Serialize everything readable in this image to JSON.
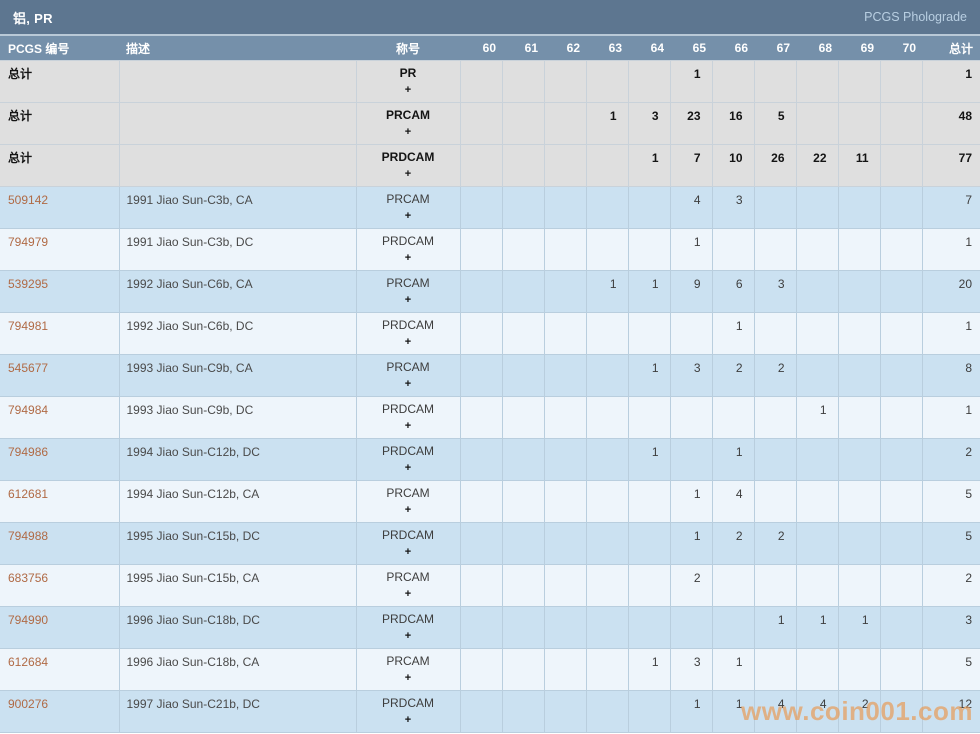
{
  "title_bar": {
    "title": "铝, PR",
    "link": "PCGS Pholograde"
  },
  "colors": {
    "topbar_bg": "#5d7690",
    "header_bg": "#7590aa",
    "row_blue": "#cbe1f1",
    "row_light": "#eef5fb",
    "summary_row_bg": "#dfdfdf",
    "pcgs_link": "#b06a45",
    "watermark_orange": "#e69c5c"
  },
  "table": {
    "headers": {
      "pcgs": "PCGS 编号",
      "desc": "描述",
      "designation": "称号",
      "grades": [
        "60",
        "61",
        "62",
        "63",
        "64",
        "65",
        "66",
        "67",
        "68",
        "69",
        "70"
      ],
      "total": "总计"
    },
    "rows": [
      {
        "kind": "summary",
        "pcgs": "总计",
        "desc": "",
        "designation": "PR",
        "plus": "+",
        "grades": [
          "",
          "",
          "",
          "",
          "",
          "1",
          "",
          "",
          "",
          "",
          ""
        ],
        "total": "1"
      },
      {
        "kind": "summary",
        "pcgs": "总计",
        "desc": "",
        "designation": "PRCAM",
        "plus": "+",
        "grades": [
          "",
          "",
          "",
          "1",
          "3",
          "23",
          "16",
          "5",
          "",
          "",
          ""
        ],
        "total": "48"
      },
      {
        "kind": "summary",
        "pcgs": "总计",
        "desc": "",
        "designation": "PRDCAM",
        "plus": "+",
        "grades": [
          "",
          "",
          "",
          "",
          "1",
          "7",
          "10",
          "26",
          "22",
          "11",
          ""
        ],
        "total": "77"
      },
      {
        "kind": "data",
        "pcgs": "509142",
        "desc": "1991 Jiao Sun-C3b, CA",
        "designation": "PRCAM",
        "plus": "+",
        "grades": [
          "",
          "",
          "",
          "",
          "",
          "4",
          "3",
          "",
          "",
          "",
          ""
        ],
        "total": "7"
      },
      {
        "kind": "data",
        "pcgs": "794979",
        "desc": "1991 Jiao Sun-C3b, DC",
        "designation": "PRDCAM",
        "plus": "+",
        "grades": [
          "",
          "",
          "",
          "",
          "",
          "1",
          "",
          "",
          "",
          "",
          ""
        ],
        "total": "1"
      },
      {
        "kind": "data",
        "pcgs": "539295",
        "desc": "1992 Jiao Sun-C6b, CA",
        "designation": "PRCAM",
        "plus": "+",
        "grades": [
          "",
          "",
          "",
          "1",
          "1",
          "9",
          "6",
          "3",
          "",
          "",
          ""
        ],
        "total": "20"
      },
      {
        "kind": "data",
        "pcgs": "794981",
        "desc": "1992 Jiao Sun-C6b, DC",
        "designation": "PRDCAM",
        "plus": "+",
        "grades": [
          "",
          "",
          "",
          "",
          "",
          "",
          "1",
          "",
          "",
          "",
          ""
        ],
        "total": "1"
      },
      {
        "kind": "data",
        "pcgs": "545677",
        "desc": "1993 Jiao Sun-C9b, CA",
        "designation": "PRCAM",
        "plus": "+",
        "grades": [
          "",
          "",
          "",
          "",
          "1",
          "3",
          "2",
          "2",
          "",
          "",
          ""
        ],
        "total": "8"
      },
      {
        "kind": "data",
        "pcgs": "794984",
        "desc": "1993 Jiao Sun-C9b, DC",
        "designation": "PRDCAM",
        "plus": "+",
        "grades": [
          "",
          "",
          "",
          "",
          "",
          "",
          "",
          "",
          "1",
          "",
          ""
        ],
        "total": "1"
      },
      {
        "kind": "data",
        "pcgs": "794986",
        "desc": "1994 Jiao Sun-C12b, DC",
        "designation": "PRDCAM",
        "plus": "+",
        "grades": [
          "",
          "",
          "",
          "",
          "1",
          "",
          "1",
          "",
          "",
          "",
          ""
        ],
        "total": "2"
      },
      {
        "kind": "data",
        "pcgs": "612681",
        "desc": "1994 Jiao Sun-C12b, CA",
        "designation": "PRCAM",
        "plus": "+",
        "grades": [
          "",
          "",
          "",
          "",
          "",
          "1",
          "4",
          "",
          "",
          "",
          ""
        ],
        "total": "5"
      },
      {
        "kind": "data",
        "pcgs": "794988",
        "desc": "1995 Jiao Sun-C15b, DC",
        "designation": "PRDCAM",
        "plus": "+",
        "grades": [
          "",
          "",
          "",
          "",
          "",
          "1",
          "2",
          "2",
          "",
          "",
          ""
        ],
        "total": "5"
      },
      {
        "kind": "data",
        "pcgs": "683756",
        "desc": "1995 Jiao Sun-C15b, CA",
        "designation": "PRCAM",
        "plus": "+",
        "grades": [
          "",
          "",
          "",
          "",
          "",
          "2",
          "",
          "",
          "",
          "",
          ""
        ],
        "total": "2"
      },
      {
        "kind": "data",
        "pcgs": "794990",
        "desc": "1996 Jiao Sun-C18b, DC",
        "designation": "PRDCAM",
        "plus": "+",
        "grades": [
          "",
          "",
          "",
          "",
          "",
          "",
          "",
          "1",
          "1",
          "1",
          ""
        ],
        "total": "3"
      },
      {
        "kind": "data",
        "pcgs": "612684",
        "desc": "1996 Jiao Sun-C18b, CA",
        "designation": "PRCAM",
        "plus": "+",
        "grades": [
          "",
          "",
          "",
          "",
          "1",
          "3",
          "1",
          "",
          "",
          "",
          ""
        ],
        "total": "5"
      },
      {
        "kind": "data",
        "pcgs": "900276",
        "desc": "1997 Jiao Sun-C21b, DC",
        "designation": "PRDCAM",
        "plus": "+",
        "grades": [
          "",
          "",
          "",
          "",
          "",
          "1",
          "1",
          "4",
          "4",
          "2",
          ""
        ],
        "total": "12"
      }
    ]
  },
  "watermark": "www.coin001.com"
}
